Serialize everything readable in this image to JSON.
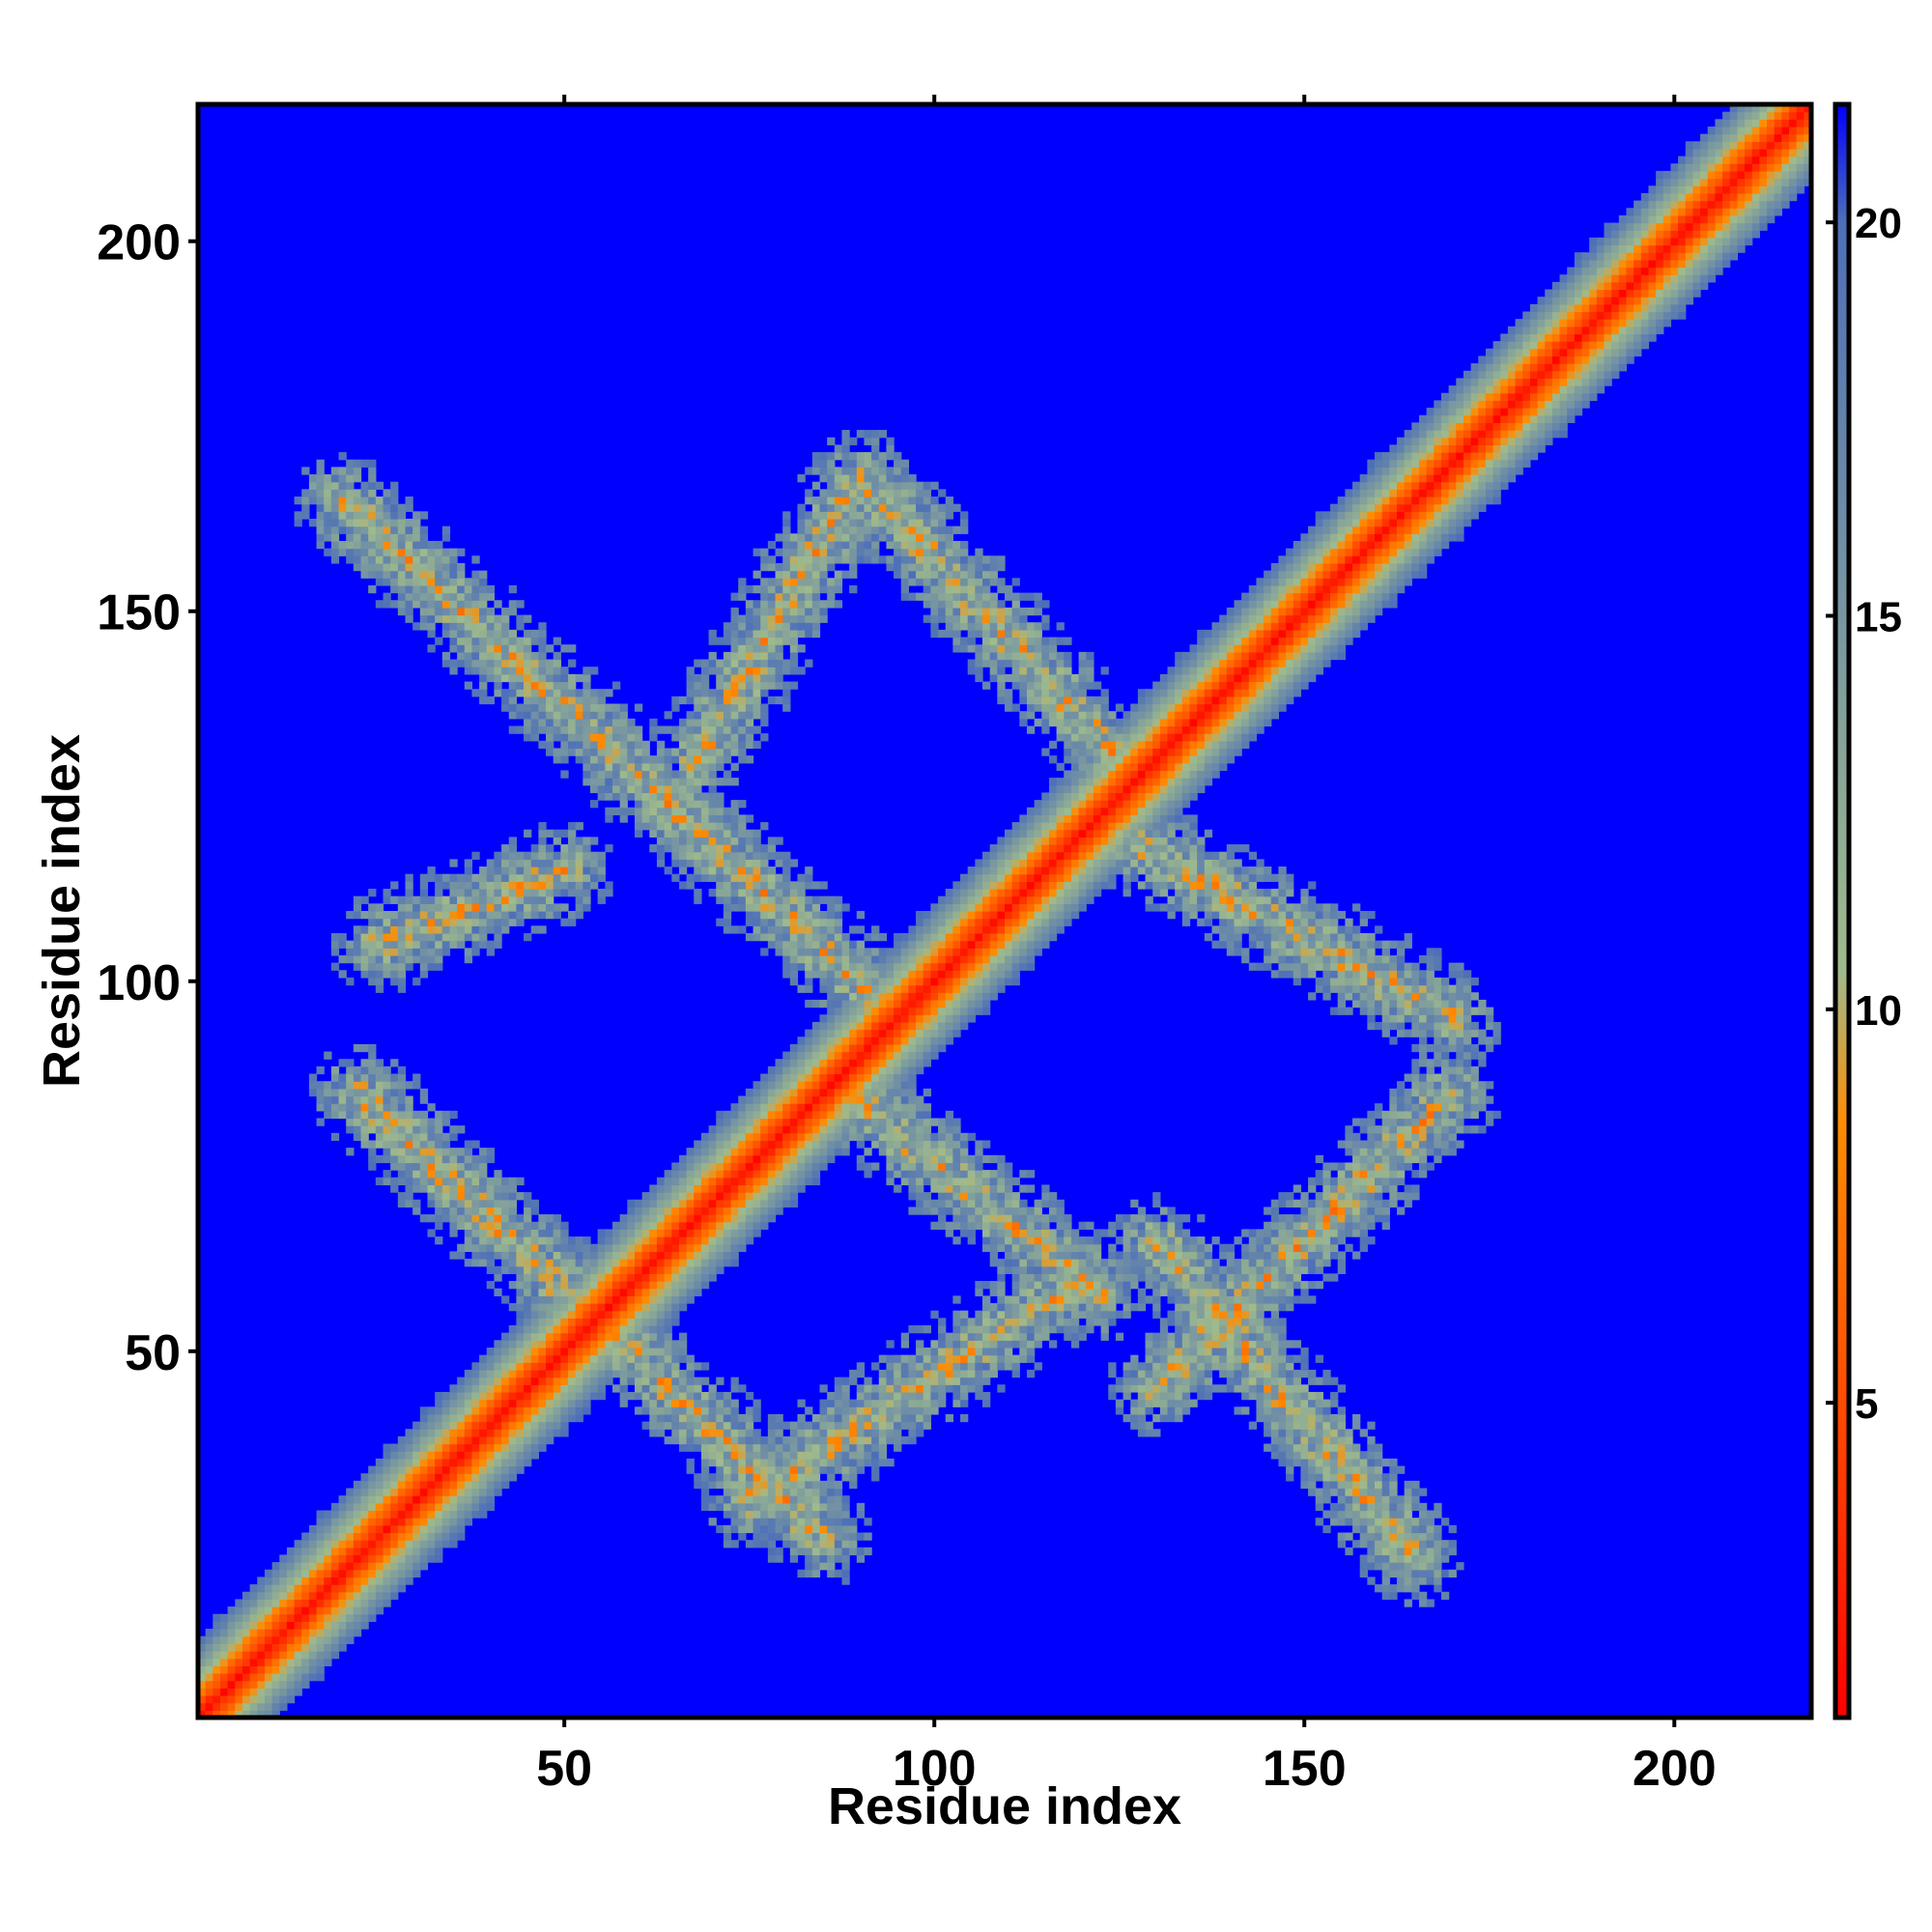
{
  "chart_data": {
    "type": "heatmap",
    "title": "",
    "xlabel": "Residue index",
    "ylabel": "Residue index",
    "xlim": [
      1,
      218
    ],
    "ylim": [
      1,
      218
    ],
    "x_ticks": [
      50,
      100,
      150,
      200
    ],
    "y_ticks": [
      50,
      100,
      150,
      200
    ],
    "colorbar": {
      "range": [
        1,
        21.5
      ],
      "ticks": [
        5,
        10,
        15,
        20
      ],
      "colors": [
        "#ff0000",
        "#ff8c00",
        "#9fba8c",
        "#4d6fb8",
        "#0000ff"
      ],
      "stops": [
        1,
        8.5,
        10.5,
        20,
        21.5
      ],
      "blue_threshold": 20
    },
    "background_color": "#0000ff",
    "grid": false,
    "structure": {
      "diagonal": {
        "description": "residue i vs i band",
        "from": 1,
        "to": 218
      },
      "antiparallel_contact_bands": [
        {
          "x_from": 20,
          "y_from": 165,
          "x_to": 95,
          "y_to": 95
        },
        {
          "x_from": 68,
          "y_from": 130,
          "x_to": 88,
          "y_to": 165
        },
        {
          "x_from": 90,
          "y_from": 168,
          "x_to": 125,
          "y_to": 130
        },
        {
          "x_from": 128,
          "y_from": 118,
          "x_to": 170,
          "y_to": 95
        },
        {
          "x_from": 170,
          "y_from": 85,
          "x_to": 130,
          "y_to": 45
        },
        {
          "x_from": 130,
          "y_from": 65,
          "x_to": 165,
          "y_to": 22
        },
        {
          "x_from": 22,
          "y_from": 85,
          "x_to": 85,
          "y_to": 25
        },
        {
          "x_from": 88,
          "y_from": 85,
          "x_to": 122,
          "y_to": 58
        },
        {
          "x_from": 75,
          "y_from": 30,
          "x_to": 120,
          "y_to": 60
        },
        {
          "x_from": 25,
          "y_from": 105,
          "x_to": 50,
          "y_to": 115
        }
      ]
    }
  }
}
